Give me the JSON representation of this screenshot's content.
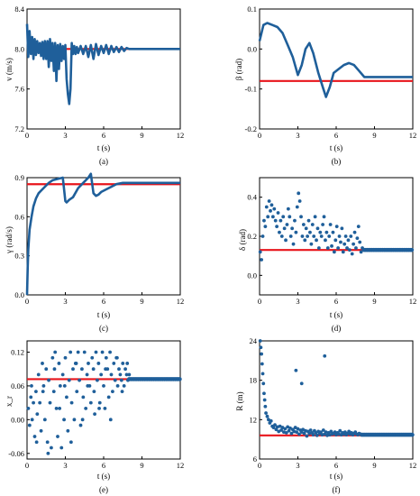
{
  "colors": {
    "series": "#1f5f9a",
    "reference": "#e8141b"
  },
  "chart_data": [
    {
      "panel_label": "(a)",
      "type": "line",
      "xlabel": "t (s)",
      "ylabel": "v (m/s)",
      "xlim": [
        0,
        12
      ],
      "ylim": [
        7.2,
        8.4
      ],
      "xticks": [
        "0",
        "3",
        "6",
        "9",
        "12"
      ],
      "yticks": [
        "7.2",
        "7.6",
        "8.0",
        "8.4"
      ],
      "reference_y": 8.0,
      "series": [
        {
          "x": [
            0,
            0.1,
            0.2,
            0.3,
            0.4,
            0.5,
            0.6,
            0.7,
            0.8,
            0.9,
            1.0,
            1.1,
            1.2,
            1.3,
            1.4,
            1.5,
            1.6,
            1.7,
            1.8,
            1.9,
            2.0,
            2.1,
            2.2,
            2.3,
            2.4,
            2.5,
            2.6,
            2.7,
            2.8,
            2.9,
            3.0,
            3.1,
            3.2,
            3.3,
            3.4,
            3.5,
            3.6,
            3.7,
            3.8,
            3.9,
            4.0,
            4.2,
            4.4,
            4.6,
            4.8,
            5.0,
            5.2,
            5.4,
            5.6,
            5.8,
            6.0,
            6.2,
            6.4,
            6.6,
            6.8,
            7.0,
            7.2,
            7.4,
            7.6,
            7.8,
            8.0,
            8.5,
            9,
            10,
            11,
            12
          ],
          "y": [
            8.25,
            7.92,
            8.18,
            7.95,
            8.12,
            7.9,
            8.1,
            7.94,
            8.08,
            7.96,
            8.06,
            7.93,
            8.07,
            7.9,
            8.08,
            7.9,
            8.08,
            7.82,
            8.1,
            7.88,
            8.06,
            7.78,
            8.06,
            7.68,
            8.04,
            7.8,
            8.05,
            7.88,
            8.03,
            7.9,
            8.04,
            7.7,
            7.55,
            7.45,
            7.6,
            8.06,
            7.95,
            8.03,
            7.95,
            8.02,
            7.96,
            8.03,
            7.95,
            8.03,
            7.92,
            8.04,
            7.9,
            8.05,
            7.94,
            8.03,
            7.96,
            8.04,
            7.95,
            8.03,
            7.97,
            8.02,
            7.97,
            8.02,
            7.98,
            8.01,
            8.0,
            8.0,
            8.0,
            8.0,
            8.0,
            8.0
          ]
        }
      ]
    },
    {
      "panel_label": "(b)",
      "type": "line",
      "xlabel": "t (s)",
      "ylabel": "β (rad)",
      "xlim": [
        0,
        12
      ],
      "ylim": [
        -0.2,
        0.1
      ],
      "xticks": [
        "0",
        "3",
        "6",
        "9",
        "12"
      ],
      "yticks": [
        "-0.2",
        "-0.1",
        "0.0",
        "0.1"
      ],
      "reference_y": -0.08,
      "series": [
        {
          "x": [
            0,
            0.3,
            0.6,
            1.0,
            1.4,
            1.8,
            2.2,
            2.6,
            3.0,
            3.3,
            3.6,
            3.9,
            4.2,
            4.6,
            5.0,
            5.2,
            5.5,
            5.8,
            6.2,
            6.6,
            7.0,
            7.4,
            7.8,
            8.2,
            8.6,
            9,
            10,
            11,
            12
          ],
          "y": [
            0.02,
            0.06,
            0.065,
            0.06,
            0.055,
            0.04,
            0.01,
            -0.02,
            -0.065,
            -0.04,
            0.0,
            0.015,
            -0.01,
            -0.06,
            -0.1,
            -0.12,
            -0.095,
            -0.06,
            -0.05,
            -0.04,
            -0.035,
            -0.04,
            -0.055,
            -0.07,
            -0.07,
            -0.07,
            -0.07,
            -0.07,
            -0.07
          ]
        }
      ]
    },
    {
      "panel_label": "(c)",
      "type": "line",
      "xlabel": "t (s)",
      "ylabel": "γ (rad/s)",
      "xlim": [
        0,
        12
      ],
      "ylim": [
        0.0,
        0.9
      ],
      "xticks": [
        "0",
        "3",
        "6",
        "9",
        "12"
      ],
      "yticks": [
        "0.0",
        "0.3",
        "0.6",
        "0.9"
      ],
      "reference_y": 0.85,
      "series": [
        {
          "x": [
            0,
            0.05,
            0.1,
            0.2,
            0.35,
            0.5,
            0.7,
            0.9,
            1.1,
            1.4,
            1.7,
            2.0,
            2.4,
            2.8,
            3.0,
            3.1,
            3.3,
            3.6,
            4.0,
            4.4,
            4.8,
            5.0,
            5.2,
            5.4,
            5.6,
            5.8,
            6.2,
            6.6,
            7.0,
            7.5,
            8,
            9,
            10,
            11,
            12
          ],
          "y": [
            0.0,
            0.2,
            0.35,
            0.5,
            0.6,
            0.68,
            0.74,
            0.78,
            0.8,
            0.83,
            0.86,
            0.88,
            0.89,
            0.9,
            0.72,
            0.71,
            0.73,
            0.75,
            0.82,
            0.86,
            0.9,
            0.93,
            0.78,
            0.76,
            0.77,
            0.79,
            0.81,
            0.83,
            0.85,
            0.86,
            0.86,
            0.86,
            0.86,
            0.86,
            0.86
          ]
        }
      ]
    },
    {
      "panel_label": "(d)",
      "type": "scatter",
      "xlabel": "t (s)",
      "ylabel": "δ (rad)",
      "xlim": [
        0,
        12
      ],
      "ylim": [
        -0.1,
        0.5
      ],
      "xticks": [
        "0",
        "3",
        "6",
        "9",
        "12"
      ],
      "yticks": [
        "0.0",
        "0.2",
        "0.4"
      ],
      "reference_y": 0.13,
      "series": [
        {
          "x": [
            0.05,
            0.15,
            0.25,
            0.35,
            0.45,
            0.55,
            0.65,
            0.75,
            0.85,
            0.95,
            1.05,
            1.15,
            1.25,
            1.35,
            1.45,
            1.55,
            1.65,
            1.75,
            1.85,
            1.95,
            2.05,
            2.15,
            2.25,
            2.35,
            2.45,
            2.55,
            2.65,
            2.75,
            2.85,
            2.95,
            3.05,
            3.15,
            3.25,
            3.35,
            3.45,
            3.55,
            3.65,
            3.75,
            3.85,
            3.95,
            4.05,
            4.15,
            4.25,
            4.35,
            4.45,
            4.55,
            4.65,
            4.75,
            4.85,
            4.95,
            5.05,
            5.15,
            5.25,
            5.35,
            5.45,
            5.55,
            5.65,
            5.75,
            5.85,
            5.95,
            6.05,
            6.15,
            6.25,
            6.35,
            6.45,
            6.55,
            6.65,
            6.75,
            6.85,
            6.95,
            7.05,
            7.15,
            7.25,
            7.35,
            7.45,
            7.55,
            7.65,
            7.75,
            7.85,
            7.95,
            8.05,
            8.15
          ],
          "y": [
            0.12,
            0.08,
            0.2,
            0.28,
            0.25,
            0.35,
            0.3,
            0.38,
            0.33,
            0.36,
            0.3,
            0.34,
            0.28,
            0.25,
            0.32,
            0.22,
            0.28,
            0.2,
            0.3,
            0.24,
            0.18,
            0.26,
            0.34,
            0.3,
            0.2,
            0.24,
            0.16,
            0.28,
            0.22,
            0.35,
            0.42,
            0.38,
            0.3,
            0.2,
            0.26,
            0.18,
            0.24,
            0.2,
            0.28,
            0.22,
            0.16,
            0.26,
            0.2,
            0.3,
            0.18,
            0.24,
            0.14,
            0.22,
            0.2,
            0.26,
            0.3,
            0.18,
            0.22,
            0.14,
            0.2,
            0.26,
            0.15,
            0.22,
            0.12,
            0.18,
            0.25,
            0.14,
            0.2,
            0.17,
            0.24,
            0.12,
            0.16,
            0.2,
            0.14,
            0.18,
            0.13,
            0.2,
            0.11,
            0.16,
            0.22,
            0.14,
            0.19,
            0.25,
            0.17,
            0.12,
            0.14,
            0.13
          ]
        }
      ],
      "settled": {
        "x_from": 8.2,
        "x_to": 12,
        "y": 0.13
      }
    },
    {
      "panel_label": "(e)",
      "type": "scatter",
      "xlabel": "t (s)",
      "ylabel": "x_r",
      "xlim": [
        0,
        12
      ],
      "ylim": [
        -0.07,
        0.14
      ],
      "xticks": [
        "0",
        "3",
        "6",
        "9",
        "12"
      ],
      "yticks": [
        "-0.06",
        "0.00",
        "0.06",
        "0.12"
      ],
      "reference_y": 0.072,
      "series": [
        {
          "x": [
            0.1,
            0.2,
            0.3,
            0.4,
            0.5,
            0.6,
            0.7,
            0.8,
            0.9,
            1.0,
            1.1,
            1.2,
            1.3,
            1.4,
            1.5,
            1.6,
            1.7,
            1.8,
            1.9,
            2.0,
            2.1,
            2.2,
            2.3,
            2.4,
            2.5,
            2.6,
            2.7,
            2.8,
            2.9,
            3.0,
            3.1,
            3.2,
            3.3,
            3.4,
            3.5,
            3.6,
            3.7,
            3.8,
            3.9,
            4.0,
            4.1,
            4.2,
            4.3,
            4.4,
            4.5,
            4.6,
            4.7,
            4.8,
            4.9,
            5.0,
            5.1,
            5.2,
            5.3,
            5.4,
            5.5,
            5.6,
            5.7,
            5.8,
            5.9,
            6.0,
            6.1,
            6.2,
            6.3,
            6.4,
            6.5,
            6.6,
            6.7,
            6.8,
            6.9,
            7.0,
            7.1,
            7.2,
            7.3,
            7.4,
            7.5,
            7.6,
            7.7,
            7.8,
            7.9,
            8.0,
            0.35,
            0.75,
            1.25,
            1.65,
            2.15,
            2.55,
            2.95,
            3.45,
            3.85,
            4.35,
            4.75,
            5.25,
            5.65,
            6.15,
            6.55,
            7.05,
            7.45,
            7.85
          ],
          "y": [
            0.02,
            -0.01,
            0.04,
            0.0,
            0.03,
            -0.03,
            0.05,
            0.01,
            0.08,
            0.03,
            -0.02,
            0.1,
            0.06,
            0.0,
            0.09,
            -0.04,
            0.07,
            0.03,
            -0.05,
            0.11,
            0.05,
            0.12,
            0.02,
            -0.03,
            0.1,
            0.06,
            -0.05,
            0.08,
            0.0,
            0.11,
            0.04,
            -0.02,
            0.07,
            0.12,
            0.03,
            0.09,
            0.0,
            0.1,
            0.05,
            0.12,
            0.07,
            -0.01,
            0.09,
            0.04,
            0.12,
            0.02,
            0.08,
            0.1,
            0.06,
            0.03,
            0.11,
            0.09,
            0.01,
            0.12,
            0.07,
            0.1,
            0.03,
            0.08,
            0.12,
            0.06,
            0.02,
            0.11,
            0.09,
            0.04,
            0.12,
            0.08,
            0.05,
            0.1,
            0.07,
            0.11,
            0.06,
            0.09,
            0.08,
            0.07,
            0.1,
            0.06,
            0.09,
            0.08,
            0.07,
            0.08,
            0.06,
            -0.04,
            0.05,
            -0.06,
            0.09,
            0.02,
            0.06,
            -0.04,
            0.1,
            0.0,
            0.06,
            0.05,
            0.02,
            0.09,
            0.0,
            0.11,
            0.05,
            0.1
          ]
        }
      ],
      "settled": {
        "x_from": 8.0,
        "x_to": 12,
        "y": 0.072
      }
    },
    {
      "panel_label": "(f)",
      "type": "scatter",
      "xlabel": "t (s)",
      "ylabel": "R (m)",
      "xlim": [
        0,
        12
      ],
      "ylim": [
        6,
        24
      ],
      "xticks": [
        "0",
        "3",
        "6",
        "9",
        "12"
      ],
      "yticks": [
        "6",
        "12",
        "18",
        "24"
      ],
      "reference_y": 9.6,
      "series": [
        {
          "x": [
            0.05,
            0.1,
            0.15,
            0.2,
            0.25,
            0.3,
            0.35,
            0.4,
            0.45,
            0.5,
            0.6,
            0.7,
            0.8,
            0.9,
            1.0,
            1.1,
            1.2,
            1.3,
            1.4,
            1.5,
            1.6,
            1.7,
            1.8,
            1.9,
            2.0,
            2.1,
            2.2,
            2.3,
            2.4,
            2.5,
            2.6,
            2.7,
            2.8,
            2.9,
            3.0,
            3.1,
            3.2,
            3.3,
            3.4,
            3.5,
            3.6,
            3.7,
            3.8,
            3.9,
            4.0,
            4.1,
            4.2,
            4.3,
            4.4,
            4.5,
            4.6,
            4.7,
            4.8,
            4.9,
            5.0,
            5.1,
            5.2,
            5.3,
            5.4,
            5.5,
            5.6,
            5.7,
            5.8,
            5.9,
            6.0,
            6.1,
            6.2,
            6.3,
            6.4,
            6.5,
            6.6,
            6.7,
            6.8,
            6.9,
            7.0,
            7.1,
            7.2,
            7.3,
            7.4,
            7.5,
            7.6,
            7.7,
            7.8,
            7.9,
            8.0,
            2.85,
            3.3,
            5.1
          ],
          "y": [
            24,
            23,
            22,
            20.5,
            19,
            17.5,
            16,
            15,
            14,
            13,
            12.5,
            12,
            11.5,
            11.8,
            11,
            10.8,
            11.2,
            10.5,
            10.9,
            10.2,
            11,
            10.4,
            10.8,
            10.1,
            10.6,
            10,
            10.9,
            10.3,
            10.7,
            9.9,
            10.5,
            10.2,
            10.8,
            10.1,
            10.6,
            9.8,
            10.4,
            10.1,
            10.5,
            9.9,
            10.3,
            9.5,
            10.2,
            9.9,
            10.4,
            10,
            9.7,
            10.3,
            10,
            9.6,
            10.2,
            9.9,
            10.1,
            9.7,
            10.4,
            9.8,
            10.1,
            9.6,
            10,
            9.7,
            10.2,
            9.8,
            9.9,
            10.1,
            9.7,
            10,
            9.8,
            10.3,
            9.7,
            10,
            9.8,
            10.1,
            9.7,
            9.9,
            10.2,
            9.8,
            10,
            9.7,
            9.9,
            10.1,
            9.8,
            9.7,
            9.9,
            9.8,
            9.7,
            19.5,
            17.5,
            21.7
          ]
        }
      ],
      "settled": {
        "x_from": 8.0,
        "x_to": 12,
        "y": 9.7
      }
    }
  ]
}
